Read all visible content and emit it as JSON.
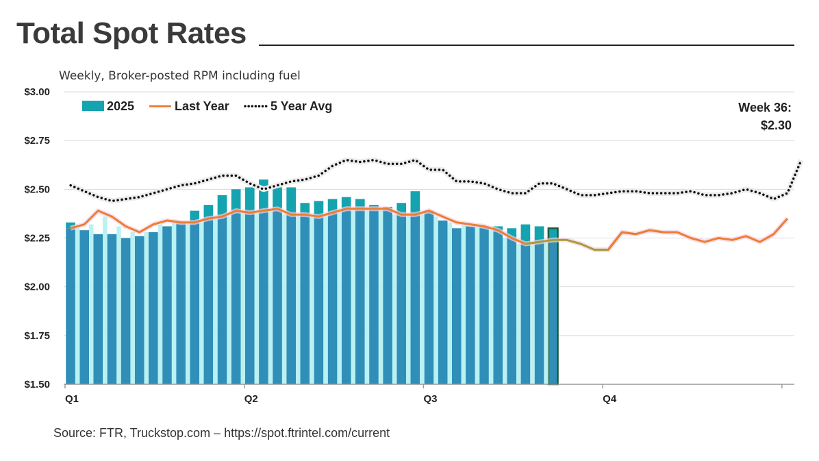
{
  "title": "Total Spot Rates",
  "subtitle": "Weekly, Broker-posted RPM including fuel",
  "source": "Source: FTR, Truckstop.com – https://spot.ftrintel.com/current",
  "colors": {
    "bar": "#15a3b0",
    "bar_overlap": "#2f8fb8",
    "bar_highlight_stroke": "#1e5a3a",
    "last_year": "#ee7d31",
    "last_year_future": "#a79b3c",
    "five_year": "#111111"
  },
  "chart_data": {
    "type": "bar",
    "xlabel": "",
    "ylabel": "",
    "ylim": [
      1.5,
      3.0
    ],
    "yticks": [
      "$1.50",
      "$1.75",
      "$2.00",
      "$2.25",
      "$2.50",
      "$2.75",
      "$3.00"
    ],
    "ytick_values": [
      1.5,
      1.75,
      2.0,
      2.25,
      2.5,
      2.75,
      3.0
    ],
    "quarter_labels": [
      "Q1",
      "Q2",
      "Q3",
      "Q4"
    ],
    "grid": true,
    "legend_position": "top-left",
    "legend": {
      "bars": "2025",
      "last_year": "Last Year",
      "five_year": "5 Year Avg"
    },
    "annotation": {
      "line1": "Week 36:",
      "line2": "$2.30"
    },
    "series": [
      {
        "name": "2025",
        "type": "bar",
        "values": [
          2.33,
          2.29,
          2.27,
          2.27,
          2.25,
          2.26,
          2.28,
          2.31,
          2.33,
          2.39,
          2.42,
          2.47,
          2.5,
          2.51,
          2.55,
          2.51,
          2.51,
          2.43,
          2.44,
          2.45,
          2.46,
          2.45,
          2.42,
          2.41,
          2.43,
          2.49,
          2.39,
          2.34,
          2.3,
          2.31,
          2.31,
          2.31,
          2.3,
          2.32,
          2.31,
          2.3
        ]
      },
      {
        "name": "Last Year",
        "type": "line",
        "values": [
          2.3,
          2.32,
          2.39,
          2.36,
          2.31,
          2.28,
          2.32,
          2.34,
          2.33,
          2.33,
          2.35,
          2.36,
          2.39,
          2.38,
          2.39,
          2.4,
          2.37,
          2.37,
          2.36,
          2.38,
          2.4,
          2.4,
          2.4,
          2.4,
          2.37,
          2.37,
          2.39,
          2.36,
          2.33,
          2.32,
          2.31,
          2.29,
          2.25,
          2.22,
          2.23,
          2.24,
          2.24,
          2.22,
          2.19,
          2.19,
          2.28,
          2.27,
          2.29,
          2.28,
          2.28,
          2.25,
          2.23,
          2.25,
          2.24,
          2.26,
          2.23,
          2.27,
          2.35
        ]
      },
      {
        "name": "5 Year Avg",
        "type": "line",
        "values": [
          2.52,
          2.49,
          2.46,
          2.44,
          2.45,
          2.46,
          2.48,
          2.5,
          2.52,
          2.53,
          2.55,
          2.57,
          2.57,
          2.53,
          2.5,
          2.52,
          2.54,
          2.55,
          2.57,
          2.62,
          2.65,
          2.64,
          2.65,
          2.63,
          2.63,
          2.65,
          2.6,
          2.6,
          2.54,
          2.54,
          2.53,
          2.5,
          2.48,
          2.48,
          2.53,
          2.53,
          2.5,
          2.47,
          2.47,
          2.48,
          2.49,
          2.49,
          2.48,
          2.48,
          2.48,
          2.49,
          2.47,
          2.47,
          2.48,
          2.5,
          2.48,
          2.45,
          2.48,
          2.65
        ]
      }
    ]
  }
}
